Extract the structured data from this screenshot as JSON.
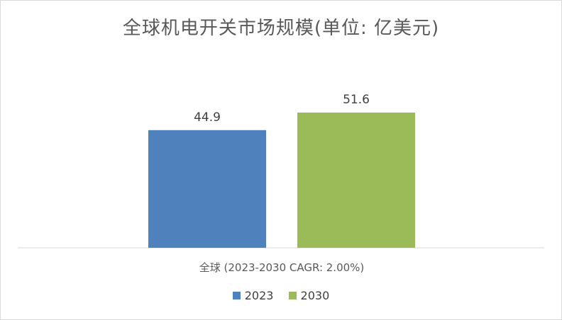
{
  "chart_data": {
    "type": "bar",
    "title": "全球机电开关市场规模(单位: 亿美元)",
    "categories": [
      "全球 (2023-2030 CAGR: 2.00%)"
    ],
    "series": [
      {
        "name": "2023",
        "values": [
          44.9
        ],
        "color": "#4f81bd"
      },
      {
        "name": "2030",
        "values": [
          51.6
        ],
        "color": "#9bbb59"
      }
    ],
    "ylim": [
      0,
      60
    ],
    "grid": false,
    "legend": "bottom"
  }
}
